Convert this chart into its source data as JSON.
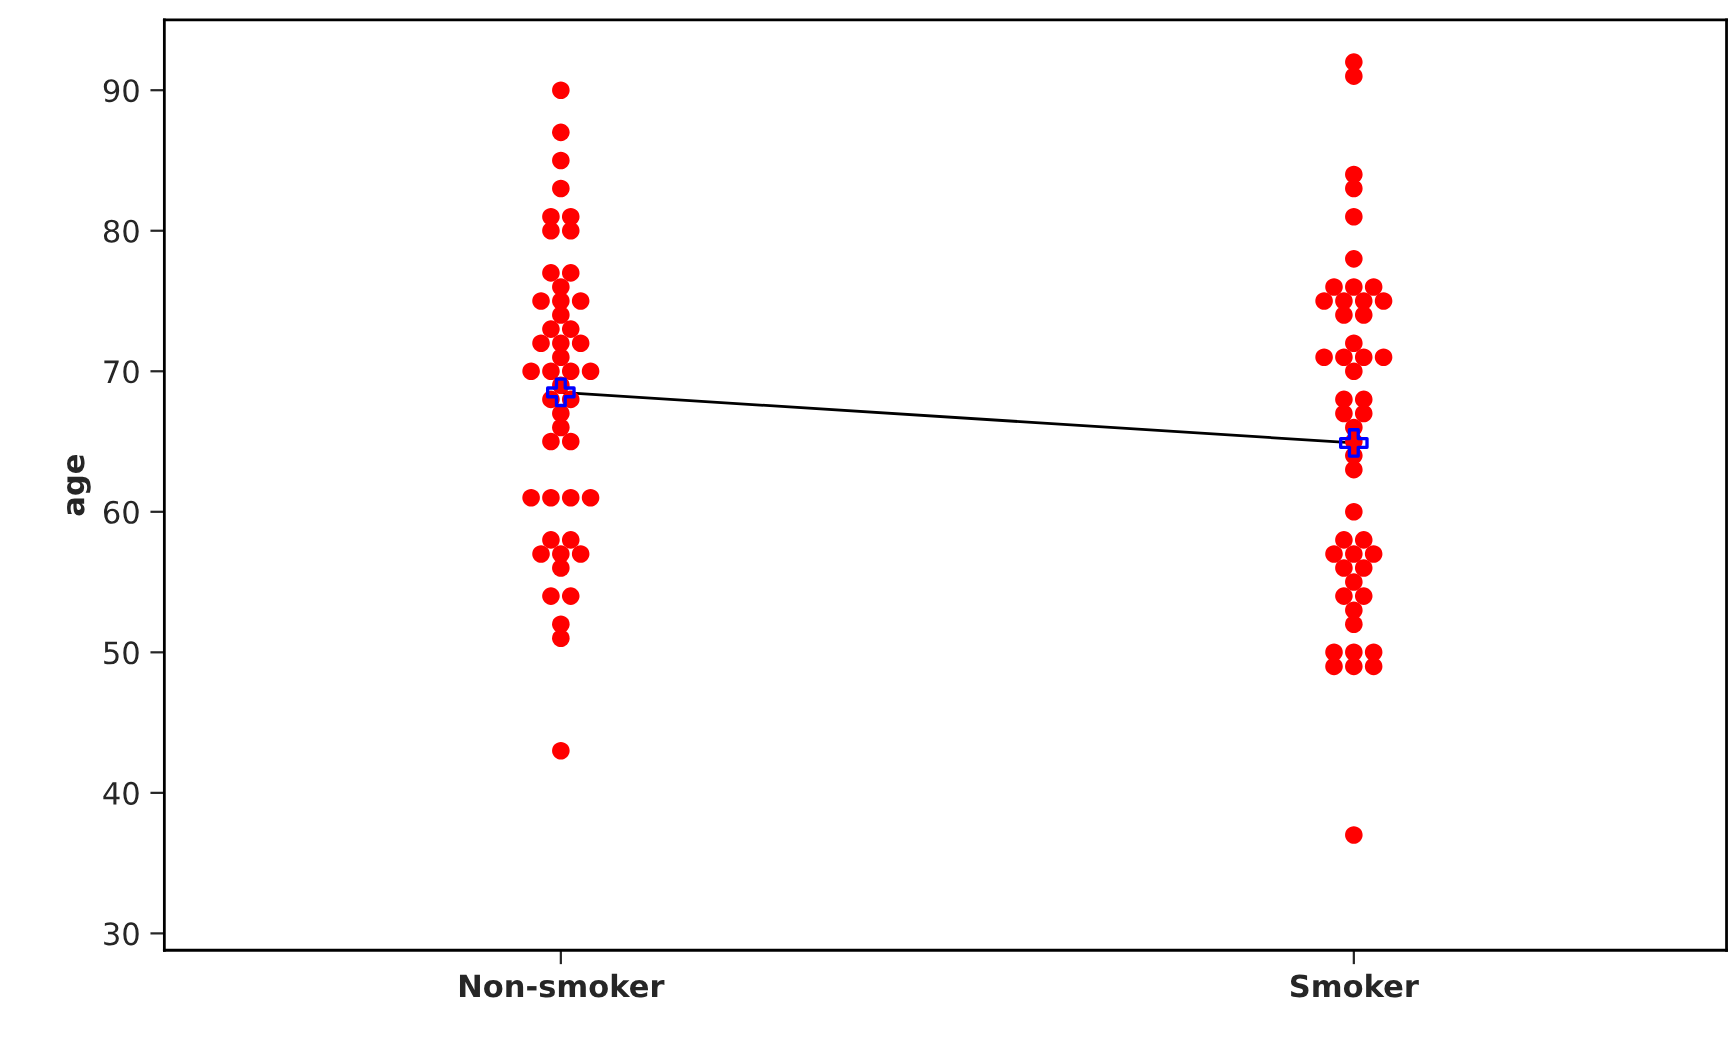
{
  "chart_data": {
    "type": "scatter",
    "ylabel": "age",
    "categories": [
      "Non-smoker",
      "Smoker"
    ],
    "ylim": [
      28.8,
      95
    ],
    "yticks": [
      30,
      40,
      50,
      60,
      70,
      80,
      90
    ],
    "grid": false,
    "legend": false,
    "series": [
      {
        "color": "#ff0000",
        "marker": "circle",
        "x": [
          "Non-smoker",
          "Non-smoker",
          "Non-smoker",
          "Non-smoker",
          "Non-smoker",
          "Non-smoker",
          "Non-smoker",
          "Non-smoker",
          "Non-smoker",
          "Non-smoker",
          "Non-smoker",
          "Non-smoker",
          "Non-smoker",
          "Non-smoker",
          "Non-smoker",
          "Non-smoker",
          "Non-smoker",
          "Non-smoker",
          "Non-smoker",
          "Non-smoker",
          "Non-smoker",
          "Non-smoker",
          "Non-smoker",
          "Non-smoker",
          "Non-smoker",
          "Non-smoker",
          "Non-smoker",
          "Non-smoker",
          "Non-smoker",
          "Non-smoker",
          "Non-smoker",
          "Non-smoker",
          "Non-smoker",
          "Non-smoker",
          "Non-smoker",
          "Non-smoker",
          "Non-smoker",
          "Non-smoker",
          "Non-smoker",
          "Non-smoker",
          "Non-smoker",
          "Non-smoker",
          "Non-smoker",
          "Non-smoker",
          "Non-smoker",
          "Non-smoker",
          "Non-smoker"
        ],
        "values": [
          90,
          87,
          85,
          83,
          81,
          81,
          80,
          80,
          77,
          77,
          76,
          75,
          75,
          75,
          74,
          73,
          73,
          72,
          72,
          72,
          71,
          70,
          70,
          70,
          70,
          69,
          68,
          68,
          67,
          66,
          65,
          65,
          61,
          61,
          61,
          61,
          58,
          58,
          57,
          57,
          57,
          56,
          54,
          54,
          52,
          51,
          43
        ]
      },
      {
        "color": "#ff0000",
        "marker": "circle",
        "x": [
          "Smoker",
          "Smoker",
          "Smoker",
          "Smoker",
          "Smoker",
          "Smoker",
          "Smoker",
          "Smoker",
          "Smoker",
          "Smoker",
          "Smoker",
          "Smoker",
          "Smoker",
          "Smoker",
          "Smoker",
          "Smoker",
          "Smoker",
          "Smoker",
          "Smoker",
          "Smoker",
          "Smoker",
          "Smoker",
          "Smoker",
          "Smoker",
          "Smoker",
          "Smoker",
          "Smoker",
          "Smoker",
          "Smoker",
          "Smoker",
          "Smoker",
          "Smoker",
          "Smoker",
          "Smoker",
          "Smoker",
          "Smoker",
          "Smoker",
          "Smoker",
          "Smoker",
          "Smoker",
          "Smoker",
          "Smoker",
          "Smoker",
          "Smoker",
          "Smoker",
          "Smoker",
          "Smoker",
          "Smoker",
          "Smoker"
        ],
        "values": [
          92,
          91,
          84,
          83,
          81,
          78,
          76,
          76,
          76,
          75,
          75,
          75,
          75,
          74,
          74,
          72,
          71,
          71,
          71,
          71,
          70,
          68,
          68,
          67,
          67,
          66,
          65,
          64,
          63,
          60,
          58,
          58,
          57,
          57,
          57,
          56,
          56,
          55,
          54,
          54,
          53,
          52,
          50,
          50,
          50,
          49,
          49,
          49,
          37
        ]
      },
      {
        "type": "line",
        "color": "#000000",
        "marker": "none",
        "line_style": "solid",
        "values": [
          68.5,
          64.9
        ]
      },
      {
        "color": "#0000ff",
        "marker": "cross",
        "values": [
          68.5,
          64.9
        ]
      }
    ]
  }
}
